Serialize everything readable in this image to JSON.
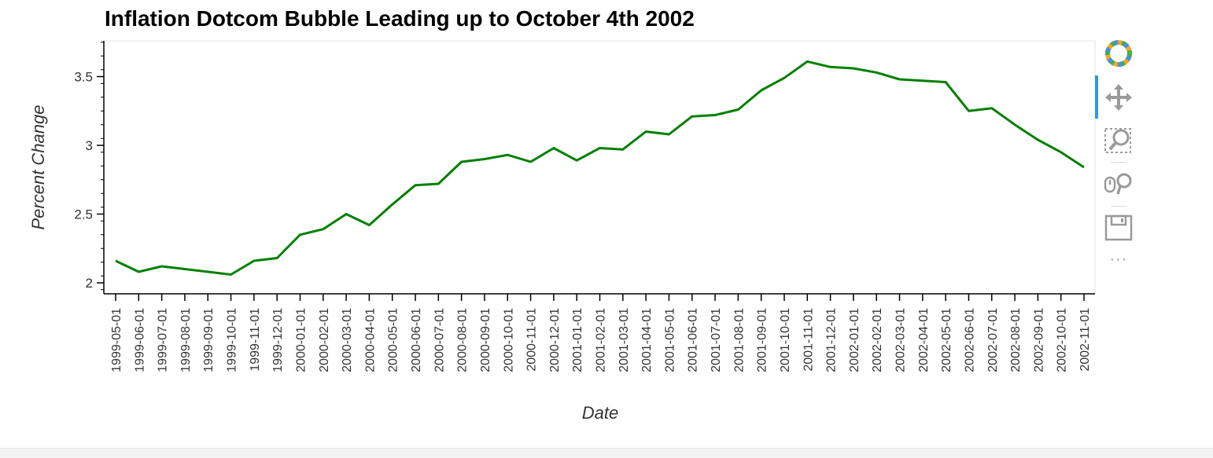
{
  "chart_data": {
    "type": "line",
    "title": "Inflation Dotcom Bubble Leading up to October 4th 2002",
    "xlabel": "Date",
    "ylabel": "Percent Change",
    "ylim": [
      1.92,
      3.76
    ],
    "y_ticks": [
      2,
      2.5,
      3,
      3.5
    ],
    "y_tick_labels": [
      "2",
      "2.5",
      "3",
      "3.5"
    ],
    "grid": false,
    "line_color": "#008000",
    "categories": [
      "1999-05-01",
      "1999-06-01",
      "1999-07-01",
      "1999-08-01",
      "1999-09-01",
      "1999-10-01",
      "1999-11-01",
      "1999-12-01",
      "2000-01-01",
      "2000-02-01",
      "2000-03-01",
      "2000-04-01",
      "2000-05-01",
      "2000-06-01",
      "2000-07-01",
      "2000-08-01",
      "2000-09-01",
      "2000-10-01",
      "2000-11-01",
      "2000-12-01",
      "2001-01-01",
      "2001-02-01",
      "2001-03-01",
      "2001-04-01",
      "2001-05-01",
      "2001-06-01",
      "2001-07-01",
      "2001-08-01",
      "2001-09-01",
      "2001-10-01",
      "2001-11-01",
      "2001-12-01",
      "2002-01-01",
      "2002-02-01",
      "2002-03-01",
      "2002-04-01",
      "2002-05-01",
      "2002-06-01",
      "2002-07-01",
      "2002-08-01",
      "2002-09-01",
      "2002-10-01",
      "2002-11-01"
    ],
    "values": [
      2.16,
      2.08,
      2.12,
      2.1,
      2.08,
      2.06,
      2.16,
      2.18,
      2.35,
      2.39,
      2.5,
      2.42,
      2.57,
      2.71,
      2.72,
      2.88,
      2.9,
      2.93,
      2.88,
      2.98,
      2.89,
      2.98,
      2.97,
      3.1,
      3.08,
      3.21,
      3.22,
      3.26,
      3.4,
      3.49,
      3.61,
      3.57,
      3.56,
      3.53,
      3.48,
      3.47,
      3.46,
      3.25,
      3.27,
      3.15,
      3.04,
      2.95,
      2.84
    ]
  },
  "toolbar": {
    "tools": [
      "bokeh-logo-icon",
      "pan-icon",
      "box-zoom-icon",
      "wheel-zoom-icon",
      "save-icon",
      "more-icon"
    ],
    "more_label": "···"
  }
}
